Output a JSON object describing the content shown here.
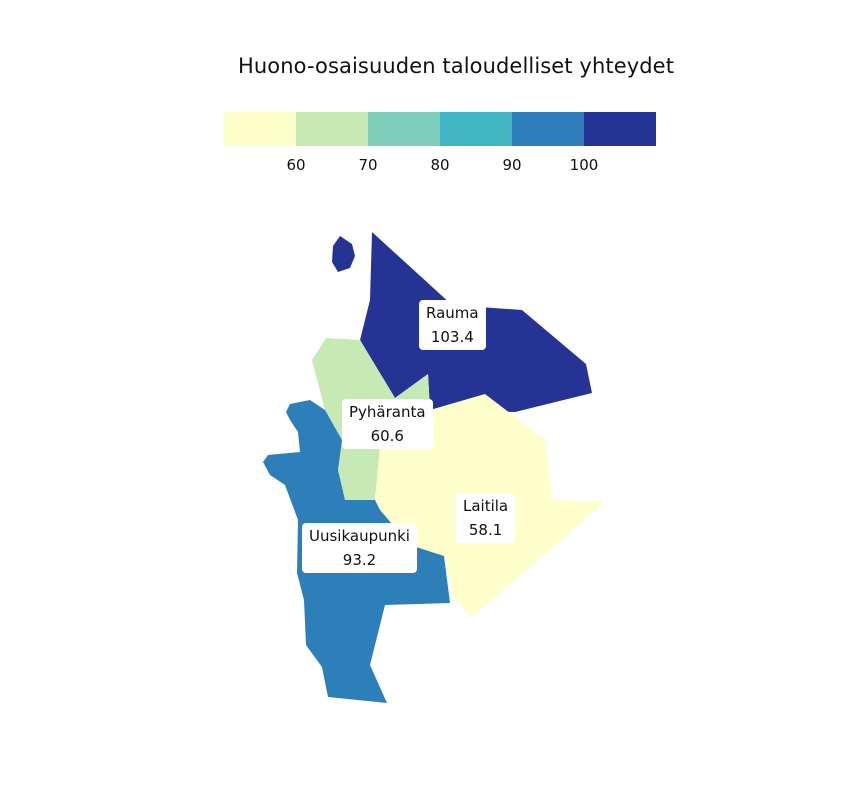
{
  "title": "Huono-osaisuuden taloudelliset yhteydet",
  "legend": {
    "bins": [
      {
        "color": "#ffffcc"
      },
      {
        "color": "#c7e9b4"
      },
      {
        "color": "#7fcdbb"
      },
      {
        "color": "#41b6c4"
      },
      {
        "color": "#2c7fb8"
      },
      {
        "color": "#253494"
      }
    ],
    "ticks": [
      "60",
      "70",
      "80",
      "90",
      "100"
    ]
  },
  "regions": [
    {
      "id": "rauma",
      "name": "Rauma",
      "value": "103.4",
      "color": "#253494"
    },
    {
      "id": "pyharanta",
      "name": "Pyhäranta",
      "value": "60.6",
      "color": "#c7e9b4"
    },
    {
      "id": "laitila",
      "name": "Laitila",
      "value": "58.1",
      "color": "#ffffcc"
    },
    {
      "id": "uusikaupunki",
      "name": "Uusikaupunki",
      "value": "93.2",
      "color": "#2c7fb8"
    }
  ]
}
